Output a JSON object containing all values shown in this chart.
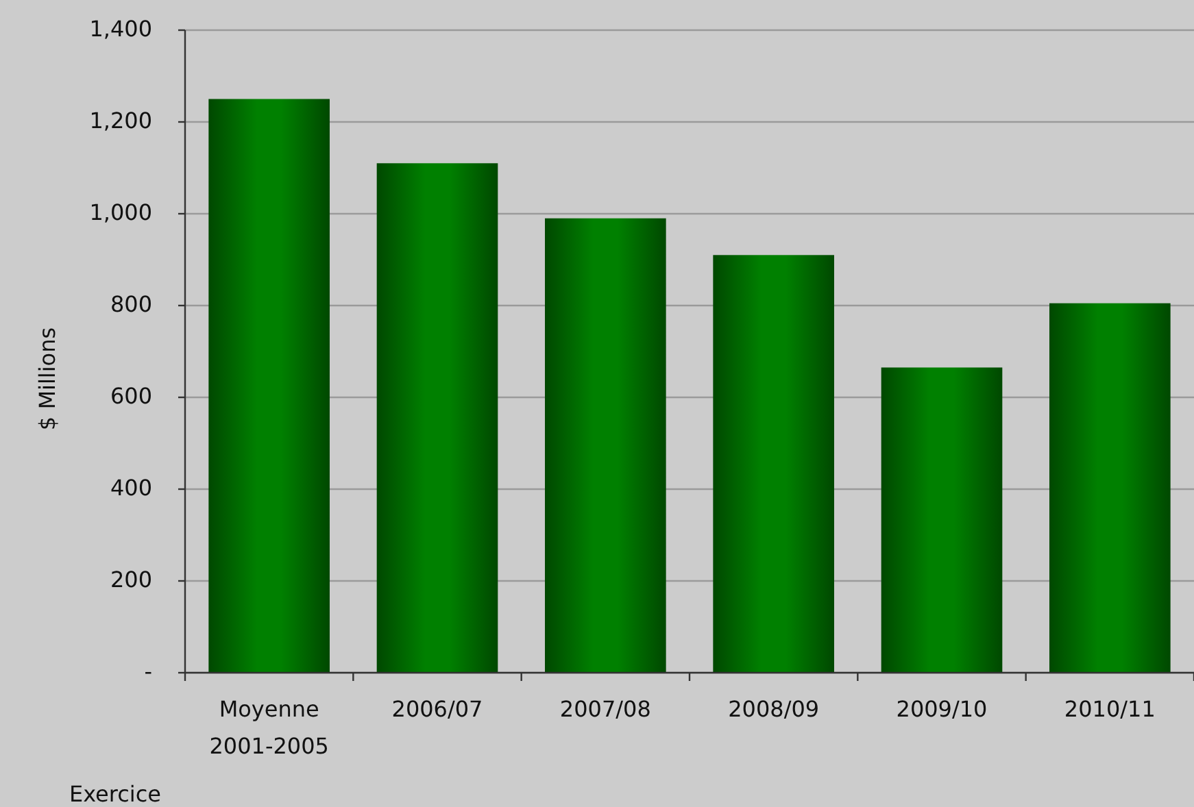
{
  "chart_data": {
    "type": "bar",
    "ylabel": "$ Millions",
    "xlabel": "Exercice",
    "categories": [
      "Moyenne 2001-2005",
      "2006/07",
      "2007/08",
      "2008/09",
      "2009/10",
      "2010/11"
    ],
    "values": [
      1250,
      1110,
      990,
      910,
      665,
      805
    ],
    "color": "#008000",
    "ylim": [
      0,
      1400
    ],
    "yticks": [
      {
        "value": 0,
        "label": "-"
      },
      200,
      400,
      600,
      800,
      {
        "value": 1000,
        "label": "1,000"
      },
      {
        "value": 1200,
        "label": "1,200"
      },
      {
        "value": 1400,
        "label": "1,400"
      }
    ],
    "grid": "y"
  }
}
